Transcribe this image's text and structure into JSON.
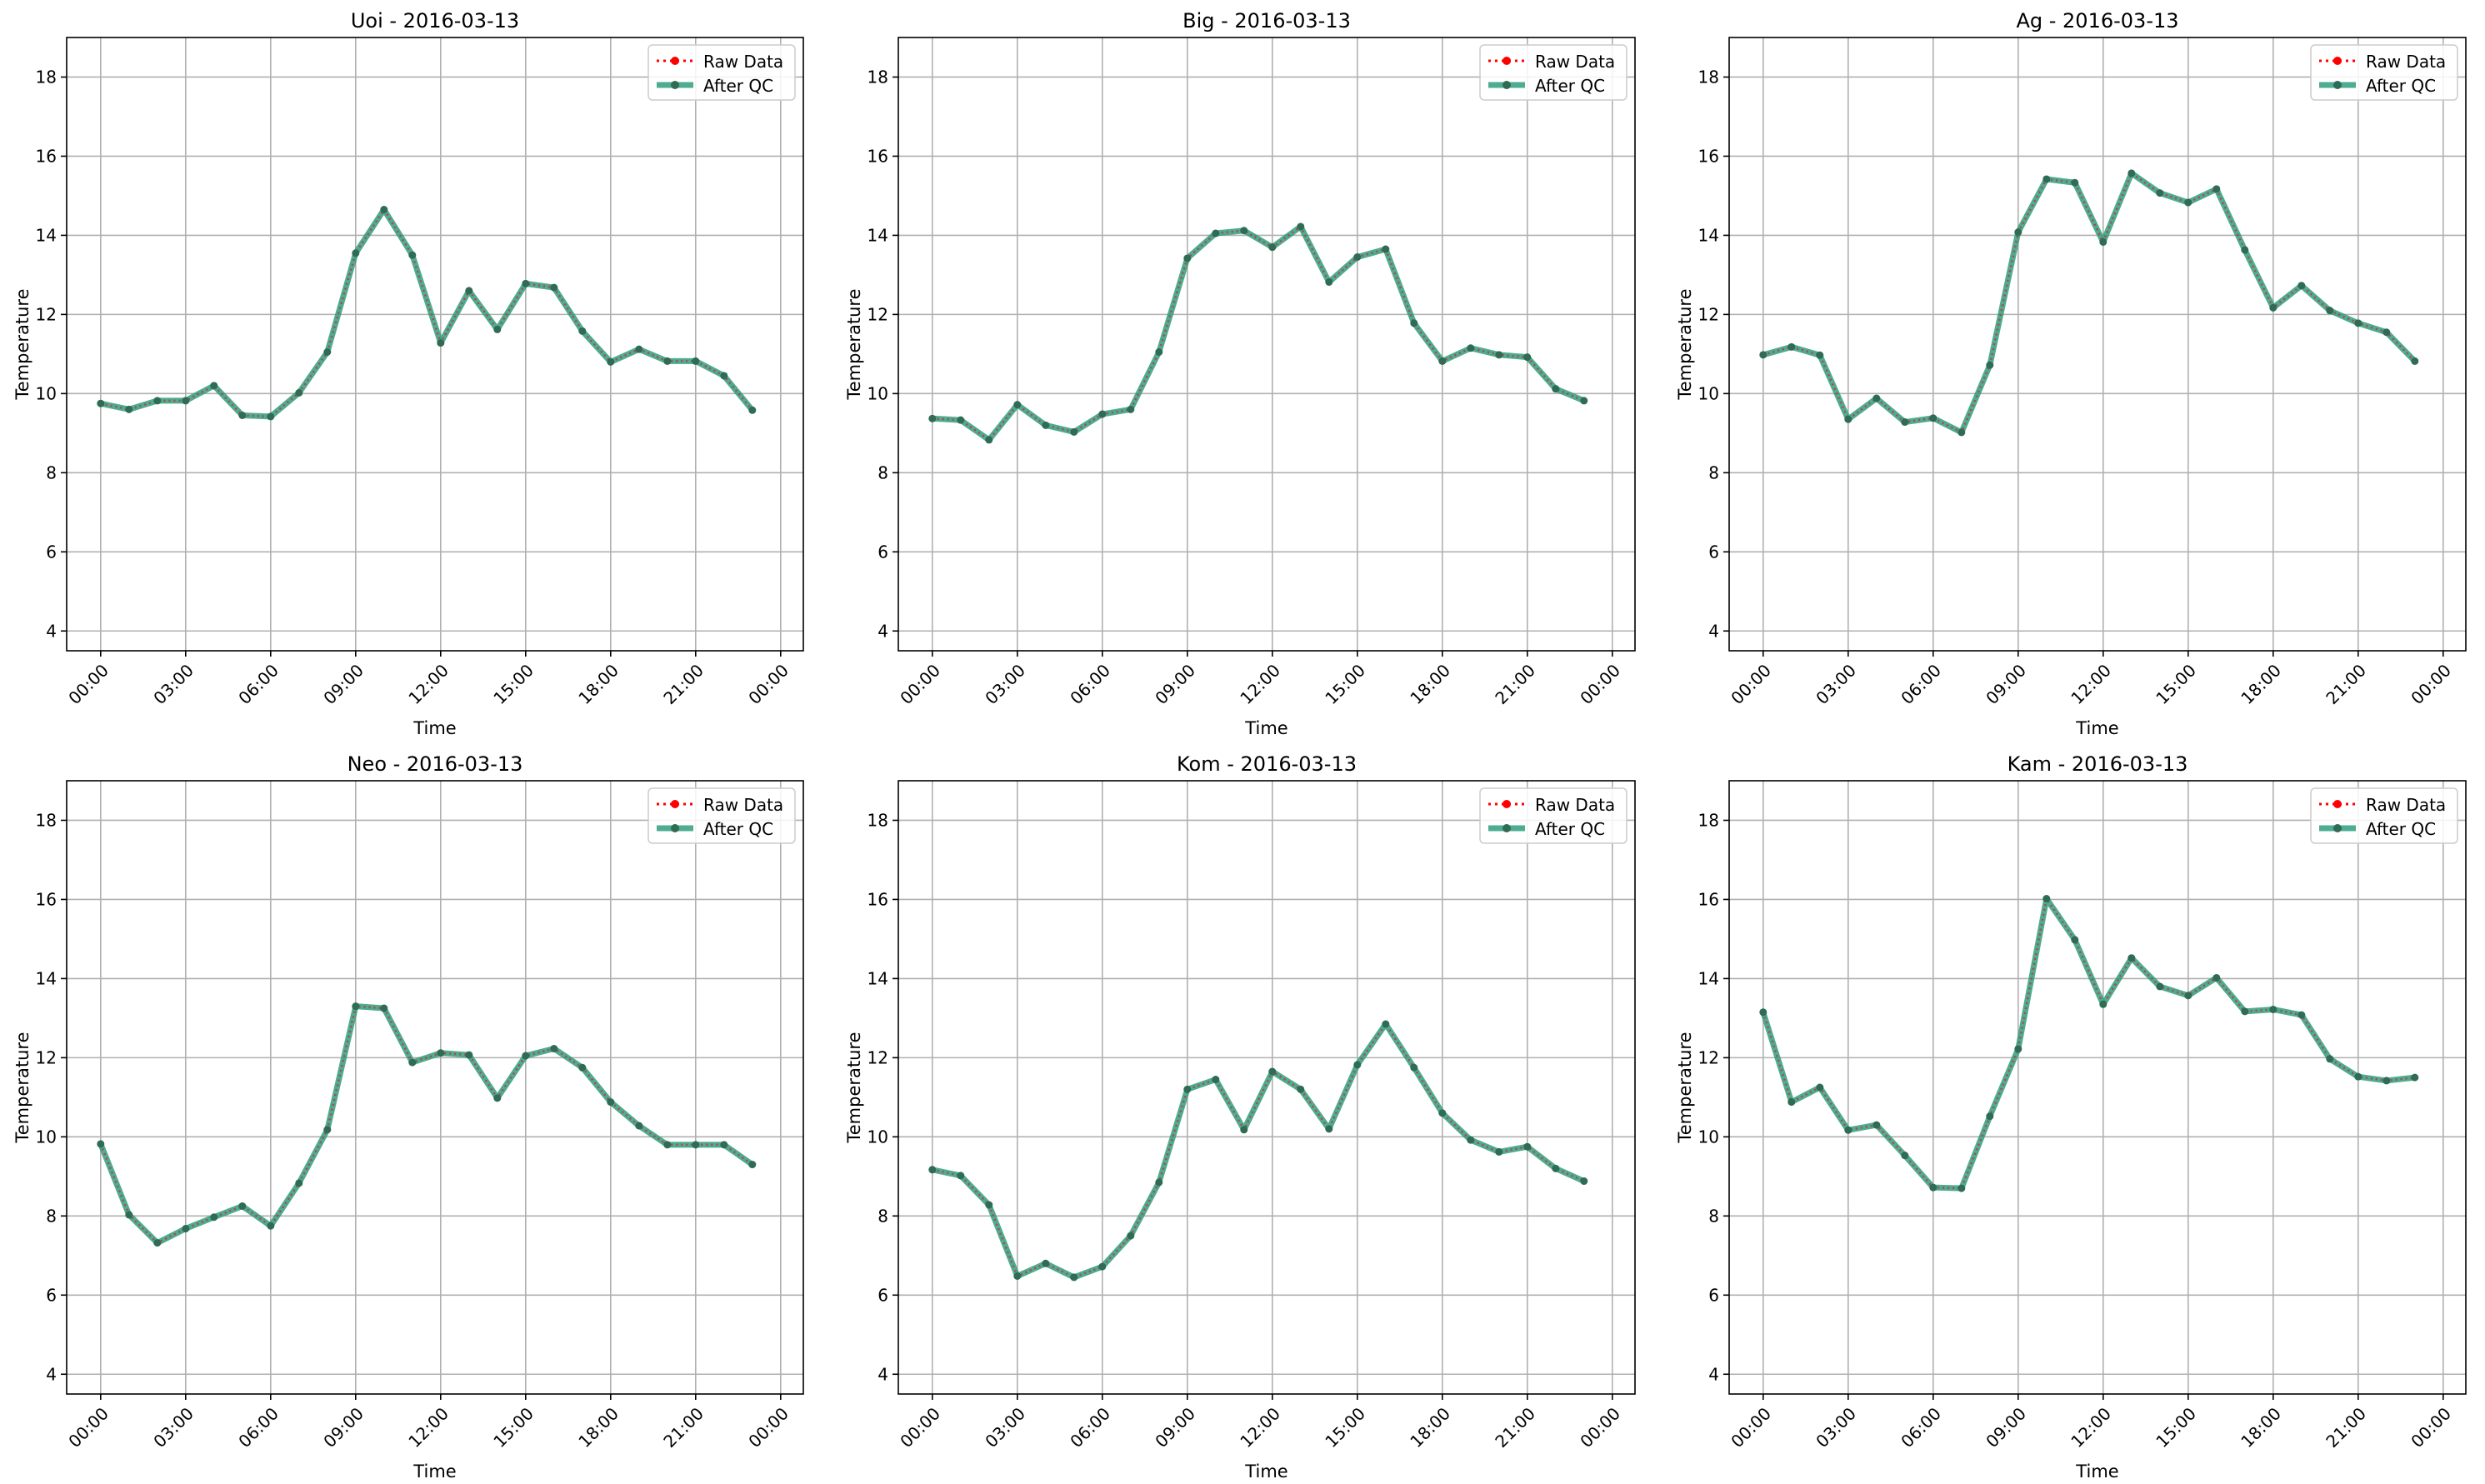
{
  "figure": {
    "legend_raw_label": "Raw Data",
    "legend_qc_label": "After QC",
    "raw_color": "#ff0000",
    "qc_color": "#2e9e7e",
    "marker_color": "#2f6b55"
  },
  "chart_data": [
    {
      "type": "line",
      "title": "Uoi - 2016-03-13",
      "xlabel": "Time",
      "ylabel": "Temperature",
      "x_ticks": [
        "00:00",
        "03:00",
        "06:00",
        "09:00",
        "12:00",
        "15:00",
        "18:00",
        "21:00",
        "00:00"
      ],
      "y_ticks": [
        4,
        6,
        8,
        10,
        12,
        14,
        16,
        18
      ],
      "ylim": [
        3.5,
        19
      ],
      "xlim_hours": [
        -1.2,
        24.8
      ],
      "grid": true,
      "legend_position": "top-right",
      "x": [
        0,
        1,
        2,
        3,
        4,
        5,
        6,
        7,
        8,
        9,
        10,
        11,
        12,
        13,
        14,
        15,
        16,
        17,
        18,
        19,
        20,
        21,
        22,
        23
      ],
      "series": [
        {
          "name": "Raw Data",
          "values": [
            9.75,
            9.6,
            9.82,
            9.82,
            10.2,
            9.45,
            9.42,
            10.02,
            11.05,
            13.55,
            14.65,
            13.5,
            11.28,
            12.6,
            11.62,
            12.78,
            12.68,
            11.58,
            10.8,
            11.12,
            10.82,
            10.82,
            10.45,
            9.58
          ]
        },
        {
          "name": "After QC",
          "values": [
            9.75,
            9.6,
            9.82,
            9.82,
            10.2,
            9.45,
            9.42,
            10.02,
            11.05,
            13.55,
            14.65,
            13.5,
            11.28,
            12.6,
            11.62,
            12.78,
            12.68,
            11.58,
            10.8,
            11.12,
            10.82,
            10.82,
            10.45,
            9.58
          ]
        }
      ]
    },
    {
      "type": "line",
      "title": "Big - 2016-03-13",
      "xlabel": "Time",
      "ylabel": "Temperature",
      "x_ticks": [
        "00:00",
        "03:00",
        "06:00",
        "09:00",
        "12:00",
        "15:00",
        "18:00",
        "21:00",
        "00:00"
      ],
      "y_ticks": [
        4,
        6,
        8,
        10,
        12,
        14,
        16,
        18
      ],
      "ylim": [
        3.5,
        19
      ],
      "xlim_hours": [
        -1.2,
        24.8
      ],
      "grid": true,
      "legend_position": "top-right",
      "x": [
        0,
        1,
        2,
        3,
        4,
        5,
        6,
        7,
        8,
        9,
        10,
        11,
        12,
        13,
        14,
        15,
        16,
        17,
        18,
        19,
        20,
        21,
        22,
        23
      ],
      "series": [
        {
          "name": "Raw Data",
          "values": [
            9.37,
            9.33,
            8.83,
            9.72,
            9.2,
            9.03,
            9.48,
            9.6,
            11.05,
            13.42,
            14.05,
            14.12,
            13.7,
            14.22,
            12.82,
            13.45,
            13.65,
            11.78,
            10.82,
            11.15,
            10.98,
            10.92,
            10.12,
            9.82
          ]
        },
        {
          "name": "After QC",
          "values": [
            9.37,
            9.33,
            8.83,
            9.72,
            9.2,
            9.03,
            9.48,
            9.6,
            11.05,
            13.42,
            14.05,
            14.12,
            13.7,
            14.22,
            12.82,
            13.45,
            13.65,
            11.78,
            10.82,
            11.15,
            10.98,
            10.92,
            10.12,
            9.82
          ]
        }
      ]
    },
    {
      "type": "line",
      "title": "Ag - 2016-03-13",
      "xlabel": "Time",
      "ylabel": "Temperature",
      "x_ticks": [
        "00:00",
        "03:00",
        "06:00",
        "09:00",
        "12:00",
        "15:00",
        "18:00",
        "21:00",
        "00:00"
      ],
      "y_ticks": [
        4,
        6,
        8,
        10,
        12,
        14,
        16,
        18
      ],
      "ylim": [
        3.5,
        19
      ],
      "xlim_hours": [
        -1.2,
        24.8
      ],
      "grid": true,
      "legend_position": "top-right",
      "x": [
        0,
        1,
        2,
        3,
        4,
        5,
        6,
        7,
        8,
        9,
        10,
        11,
        12,
        13,
        14,
        15,
        16,
        17,
        18,
        19,
        20,
        21,
        22,
        23
      ],
      "series": [
        {
          "name": "Raw Data",
          "values": [
            10.98,
            11.18,
            10.97,
            9.35,
            9.88,
            9.28,
            9.38,
            9.02,
            10.72,
            14.08,
            15.42,
            15.33,
            13.83,
            15.57,
            15.07,
            14.83,
            15.17,
            13.63,
            12.17,
            12.73,
            12.1,
            11.78,
            11.55,
            10.82
          ]
        },
        {
          "name": "After QC",
          "values": [
            10.98,
            11.18,
            10.97,
            9.35,
            9.88,
            9.28,
            9.38,
            9.02,
            10.72,
            14.08,
            15.42,
            15.33,
            13.83,
            15.57,
            15.07,
            14.83,
            15.17,
            13.63,
            12.17,
            12.73,
            12.1,
            11.78,
            11.55,
            10.82
          ]
        }
      ]
    },
    {
      "type": "line",
      "title": "Neo - 2016-03-13",
      "xlabel": "Time",
      "ylabel": "Temperature",
      "x_ticks": [
        "00:00",
        "03:00",
        "06:00",
        "09:00",
        "12:00",
        "15:00",
        "18:00",
        "21:00",
        "00:00"
      ],
      "y_ticks": [
        4,
        6,
        8,
        10,
        12,
        14,
        16,
        18
      ],
      "ylim": [
        3.5,
        19
      ],
      "xlim_hours": [
        -1.2,
        24.8
      ],
      "grid": true,
      "legend_position": "top-right",
      "x": [
        0,
        1,
        2,
        3,
        4,
        5,
        6,
        7,
        8,
        9,
        10,
        11,
        12,
        13,
        14,
        15,
        16,
        17,
        18,
        19,
        20,
        21,
        22,
        23
      ],
      "series": [
        {
          "name": "Raw Data",
          "values": [
            9.82,
            8.03,
            7.32,
            7.68,
            7.97,
            8.25,
            7.75,
            8.83,
            10.18,
            13.3,
            13.25,
            11.88,
            12.12,
            12.07,
            10.98,
            12.05,
            12.23,
            11.75,
            10.88,
            10.28,
            9.8,
            9.8,
            9.8,
            9.3
          ]
        },
        {
          "name": "After QC",
          "values": [
            9.82,
            8.03,
            7.32,
            7.68,
            7.97,
            8.25,
            7.75,
            8.83,
            10.18,
            13.3,
            13.25,
            11.88,
            12.12,
            12.07,
            10.98,
            12.05,
            12.23,
            11.75,
            10.88,
            10.28,
            9.8,
            9.8,
            9.8,
            9.3
          ]
        }
      ]
    },
    {
      "type": "line",
      "title": "Kom - 2016-03-13",
      "xlabel": "Time",
      "ylabel": "Temperature",
      "x_ticks": [
        "00:00",
        "03:00",
        "06:00",
        "09:00",
        "12:00",
        "15:00",
        "18:00",
        "21:00",
        "00:00"
      ],
      "y_ticks": [
        4,
        6,
        8,
        10,
        12,
        14,
        16,
        18
      ],
      "ylim": [
        3.5,
        19
      ],
      "xlim_hours": [
        -1.2,
        24.8
      ],
      "grid": true,
      "legend_position": "top-right",
      "x": [
        0,
        1,
        2,
        3,
        4,
        5,
        6,
        7,
        8,
        9,
        10,
        11,
        12,
        13,
        14,
        15,
        16,
        17,
        18,
        19,
        20,
        21,
        22,
        23
      ],
      "series": [
        {
          "name": "Raw Data",
          "values": [
            9.17,
            9.02,
            8.28,
            6.48,
            6.8,
            6.45,
            6.72,
            7.5,
            8.85,
            11.2,
            11.45,
            10.18,
            11.65,
            11.2,
            10.2,
            11.82,
            12.85,
            11.75,
            10.6,
            9.92,
            9.62,
            9.75,
            9.2,
            8.88
          ]
        },
        {
          "name": "After QC",
          "values": [
            9.17,
            9.02,
            8.28,
            6.48,
            6.8,
            6.45,
            6.72,
            7.5,
            8.85,
            11.2,
            11.45,
            10.18,
            11.65,
            11.2,
            10.2,
            11.82,
            12.85,
            11.75,
            10.6,
            9.92,
            9.62,
            9.75,
            9.2,
            8.88
          ]
        }
      ]
    },
    {
      "type": "line",
      "title": "Kam - 2016-03-13",
      "xlabel": "Time",
      "ylabel": "Temperature",
      "x_ticks": [
        "00:00",
        "03:00",
        "06:00",
        "09:00",
        "12:00",
        "15:00",
        "18:00",
        "21:00",
        "00:00"
      ],
      "y_ticks": [
        4,
        6,
        8,
        10,
        12,
        14,
        16,
        18
      ],
      "ylim": [
        3.5,
        19
      ],
      "xlim_hours": [
        -1.2,
        24.8
      ],
      "grid": true,
      "legend_position": "top-right",
      "x": [
        0,
        1,
        2,
        3,
        4,
        5,
        6,
        7,
        8,
        9,
        10,
        11,
        12,
        13,
        14,
        15,
        16,
        17,
        18,
        19,
        20,
        21,
        22,
        23
      ],
      "series": [
        {
          "name": "Raw Data",
          "values": [
            13.15,
            10.88,
            11.25,
            10.17,
            10.3,
            9.53,
            8.72,
            8.7,
            10.52,
            12.22,
            16.02,
            14.98,
            13.35,
            14.52,
            13.8,
            13.57,
            14.02,
            13.17,
            13.22,
            13.08,
            11.97,
            11.52,
            11.42,
            11.5
          ]
        },
        {
          "name": "After QC",
          "values": [
            13.15,
            10.88,
            11.25,
            10.17,
            10.3,
            9.53,
            8.72,
            8.7,
            10.52,
            12.22,
            16.02,
            14.98,
            13.35,
            14.52,
            13.8,
            13.57,
            14.02,
            13.17,
            13.22,
            13.08,
            11.97,
            11.52,
            11.42,
            11.5
          ]
        }
      ]
    }
  ]
}
